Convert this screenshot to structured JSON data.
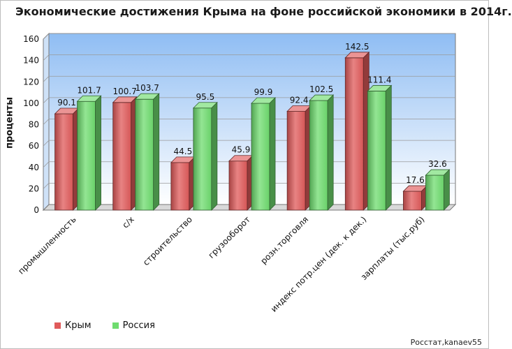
{
  "title": "Экономические достижения Крыма на фоне российской экономики в 2014г.",
  "source": "Росстат,kanaev55",
  "chart_data": {
    "type": "bar",
    "title": "Экономические достижения Крыма на фоне российской экономики в 2014г.",
    "ylabel": "проценты",
    "xlabel": "",
    "ylim": [
      0,
      160
    ],
    "yticks": [
      0,
      20,
      40,
      60,
      80,
      100,
      120,
      140,
      160
    ],
    "grid": true,
    "legend_position": "bottom-left",
    "categories": [
      "промышленность",
      "с/х",
      "строительство",
      "грузооборот",
      "розн.торговля",
      "индекс потр.цен (дек. к дек.)",
      "зарплаты (тыс.руб)"
    ],
    "series": [
      {
        "name": "Крым",
        "color": "#e05a5a",
        "values": [
          90.1,
          100.7,
          44.5,
          45.9,
          92.4,
          142.5,
          17.6
        ]
      },
      {
        "name": "Россия",
        "color": "#6fdc6f",
        "values": [
          101.7,
          103.7,
          95.5,
          99.9,
          102.5,
          111.4,
          32.6
        ]
      }
    ]
  }
}
